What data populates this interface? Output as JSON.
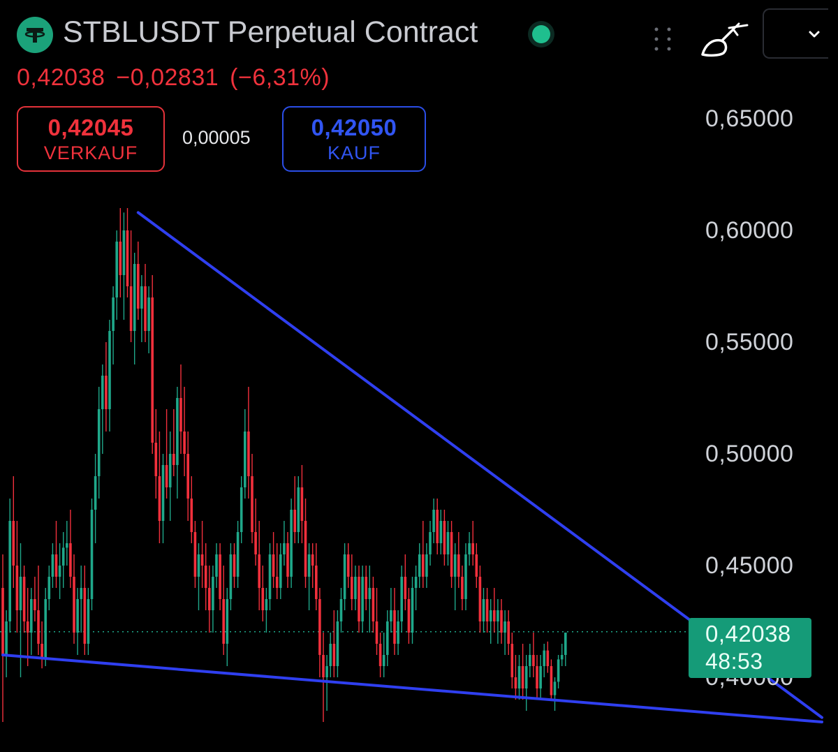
{
  "header": {
    "title": "STBLUSDT Perpetual Contract",
    "logo_icon": "tether-logo-icon",
    "status": "live",
    "icons": [
      "drag-handle-icon",
      "brush-icon",
      "chevron-down-icon"
    ]
  },
  "quote": {
    "last": "0,42038",
    "change": "−0,02831",
    "change_pct": "(−6,31%)"
  },
  "order": {
    "sell_price": "0,42045",
    "sell_label": "VERKAUF",
    "spread": "0,00005",
    "buy_price": "0,42050",
    "buy_label": "KAUF"
  },
  "current_tag": {
    "price": "0,42038",
    "countdown": "48:53"
  },
  "colors": {
    "up": "#1fa88a",
    "down": "#f2303c",
    "trendline": "#2f3ff0",
    "tag": "#159b78"
  },
  "chart_data": {
    "type": "candlestick",
    "yaxis": {
      "ticks": [
        0.65,
        0.6,
        0.55,
        0.5,
        0.45,
        0.4
      ],
      "tick_labels": [
        "0,65000",
        "0,60000",
        "0,55000",
        "0,50000",
        "0,45000",
        "0,40000"
      ],
      "range": [
        0.375,
        0.685
      ],
      "position": "right"
    },
    "current_price": 0.42038,
    "trendlines": [
      {
        "name": "resistance",
        "from": [
          38,
          0.608
        ],
        "to": [
          230,
          0.382
        ]
      },
      {
        "name": "support",
        "from": [
          0,
          0.41
        ],
        "to": [
          230,
          0.38
        ]
      }
    ],
    "candles_ohlc": [
      [
        0.44,
        0.455,
        0.38,
        0.41
      ],
      [
        0.41,
        0.43,
        0.4,
        0.425
      ],
      [
        0.425,
        0.48,
        0.42,
        0.47
      ],
      [
        0.47,
        0.49,
        0.44,
        0.45
      ],
      [
        0.45,
        0.47,
        0.42,
        0.43
      ],
      [
        0.43,
        0.46,
        0.4,
        0.445
      ],
      [
        0.445,
        0.45,
        0.42,
        0.425
      ],
      [
        0.425,
        0.44,
        0.405,
        0.42
      ],
      [
        0.42,
        0.44,
        0.41,
        0.435
      ],
      [
        0.435,
        0.445,
        0.425,
        0.43
      ],
      [
        0.43,
        0.45,
        0.41,
        0.415
      ],
      [
        0.415,
        0.425,
        0.404,
        0.408
      ],
      [
        0.408,
        0.44,
        0.405,
        0.435
      ],
      [
        0.435,
        0.45,
        0.43,
        0.445
      ],
      [
        0.445,
        0.46,
        0.44,
        0.455
      ],
      [
        0.455,
        0.47,
        0.44,
        0.445
      ],
      [
        0.445,
        0.46,
        0.435,
        0.45
      ],
      [
        0.45,
        0.465,
        0.44,
        0.458
      ],
      [
        0.458,
        0.47,
        0.45,
        0.46
      ],
      [
        0.46,
        0.475,
        0.44,
        0.445
      ],
      [
        0.445,
        0.455,
        0.415,
        0.42
      ],
      [
        0.42,
        0.44,
        0.41,
        0.435
      ],
      [
        0.435,
        0.45,
        0.42,
        0.44
      ],
      [
        0.44,
        0.45,
        0.41,
        0.415
      ],
      [
        0.415,
        0.44,
        0.41,
        0.435
      ],
      [
        0.435,
        0.48,
        0.43,
        0.475
      ],
      [
        0.475,
        0.5,
        0.46,
        0.49
      ],
      [
        0.49,
        0.53,
        0.48,
        0.52
      ],
      [
        0.52,
        0.54,
        0.5,
        0.535
      ],
      [
        0.535,
        0.55,
        0.51,
        0.52
      ],
      [
        0.52,
        0.56,
        0.51,
        0.555
      ],
      [
        0.555,
        0.575,
        0.54,
        0.57
      ],
      [
        0.57,
        0.6,
        0.56,
        0.595
      ],
      [
        0.595,
        0.61,
        0.57,
        0.58
      ],
      [
        0.58,
        0.608,
        0.56,
        0.6
      ],
      [
        0.6,
        0.61,
        0.57,
        0.575
      ],
      [
        0.575,
        0.6,
        0.55,
        0.555
      ],
      [
        0.555,
        0.59,
        0.54,
        0.585
      ],
      [
        0.585,
        0.595,
        0.56,
        0.565
      ],
      [
        0.565,
        0.58,
        0.55,
        0.575
      ],
      [
        0.575,
        0.585,
        0.55,
        0.555
      ],
      [
        0.555,
        0.575,
        0.545,
        0.57
      ],
      [
        0.57,
        0.58,
        0.5,
        0.505
      ],
      [
        0.505,
        0.52,
        0.48,
        0.49
      ],
      [
        0.49,
        0.51,
        0.46,
        0.47
      ],
      [
        0.47,
        0.5,
        0.46,
        0.495
      ],
      [
        0.495,
        0.52,
        0.48,
        0.485
      ],
      [
        0.485,
        0.51,
        0.47,
        0.5
      ],
      [
        0.5,
        0.52,
        0.49,
        0.495
      ],
      [
        0.495,
        0.53,
        0.48,
        0.525
      ],
      [
        0.525,
        0.54,
        0.5,
        0.51
      ],
      [
        0.51,
        0.53,
        0.49,
        0.5
      ],
      [
        0.5,
        0.51,
        0.47,
        0.48
      ],
      [
        0.48,
        0.49,
        0.46,
        0.465
      ],
      [
        0.465,
        0.47,
        0.44,
        0.445
      ],
      [
        0.445,
        0.46,
        0.43,
        0.455
      ],
      [
        0.455,
        0.47,
        0.44,
        0.45
      ],
      [
        0.45,
        0.46,
        0.43,
        0.44
      ],
      [
        0.44,
        0.45,
        0.42,
        0.43
      ],
      [
        0.43,
        0.45,
        0.42,
        0.445
      ],
      [
        0.445,
        0.46,
        0.44,
        0.455
      ],
      [
        0.455,
        0.46,
        0.43,
        0.435
      ],
      [
        0.435,
        0.45,
        0.41,
        0.415
      ],
      [
        0.415,
        0.44,
        0.405,
        0.435
      ],
      [
        0.435,
        0.46,
        0.43,
        0.455
      ],
      [
        0.455,
        0.46,
        0.44,
        0.445
      ],
      [
        0.445,
        0.47,
        0.44,
        0.465
      ],
      [
        0.465,
        0.49,
        0.46,
        0.485
      ],
      [
        0.485,
        0.52,
        0.48,
        0.51
      ],
      [
        0.51,
        0.53,
        0.48,
        0.49
      ],
      [
        0.49,
        0.5,
        0.46,
        0.465
      ],
      [
        0.465,
        0.48,
        0.45,
        0.455
      ],
      [
        0.455,
        0.47,
        0.43,
        0.44
      ],
      [
        0.44,
        0.45,
        0.425,
        0.43
      ],
      [
        0.43,
        0.44,
        0.42,
        0.435
      ],
      [
        0.435,
        0.46,
        0.43,
        0.455
      ],
      [
        0.455,
        0.465,
        0.44,
        0.445
      ],
      [
        0.445,
        0.46,
        0.435,
        0.44
      ],
      [
        0.44,
        0.46,
        0.435,
        0.455
      ],
      [
        0.455,
        0.47,
        0.45,
        0.46
      ],
      [
        0.46,
        0.465,
        0.44,
        0.445
      ],
      [
        0.445,
        0.48,
        0.44,
        0.475
      ],
      [
        0.475,
        0.49,
        0.46,
        0.465
      ],
      [
        0.465,
        0.49,
        0.46,
        0.485
      ],
      [
        0.485,
        0.495,
        0.46,
        0.47
      ],
      [
        0.47,
        0.48,
        0.44,
        0.445
      ],
      [
        0.445,
        0.46,
        0.43,
        0.455
      ],
      [
        0.455,
        0.46,
        0.44,
        0.45
      ],
      [
        0.45,
        0.46,
        0.43,
        0.435
      ],
      [
        0.435,
        0.44,
        0.4,
        0.41
      ],
      [
        0.41,
        0.42,
        0.38,
        0.4
      ],
      [
        0.4,
        0.41,
        0.385,
        0.405
      ],
      [
        0.405,
        0.42,
        0.4,
        0.415
      ],
      [
        0.415,
        0.43,
        0.4,
        0.405
      ],
      [
        0.405,
        0.43,
        0.4,
        0.425
      ],
      [
        0.425,
        0.44,
        0.42,
        0.435
      ],
      [
        0.435,
        0.46,
        0.43,
        0.455
      ],
      [
        0.455,
        0.46,
        0.44,
        0.445
      ],
      [
        0.445,
        0.455,
        0.43,
        0.435
      ],
      [
        0.435,
        0.45,
        0.43,
        0.445
      ],
      [
        0.445,
        0.45,
        0.42,
        0.425
      ],
      [
        0.425,
        0.45,
        0.42,
        0.445
      ],
      [
        0.445,
        0.45,
        0.43,
        0.435
      ],
      [
        0.435,
        0.45,
        0.42,
        0.44
      ],
      [
        0.44,
        0.445,
        0.42,
        0.425
      ],
      [
        0.425,
        0.44,
        0.41,
        0.415
      ],
      [
        0.415,
        0.42,
        0.4,
        0.405
      ],
      [
        0.405,
        0.42,
        0.4,
        0.41
      ],
      [
        0.41,
        0.43,
        0.405,
        0.425
      ],
      [
        0.425,
        0.44,
        0.42,
        0.43
      ],
      [
        0.43,
        0.44,
        0.41,
        0.415
      ],
      [
        0.415,
        0.43,
        0.41,
        0.425
      ],
      [
        0.425,
        0.45,
        0.42,
        0.445
      ],
      [
        0.445,
        0.455,
        0.43,
        0.435
      ],
      [
        0.435,
        0.44,
        0.415,
        0.42
      ],
      [
        0.42,
        0.445,
        0.415,
        0.44
      ],
      [
        0.44,
        0.45,
        0.43,
        0.445
      ],
      [
        0.445,
        0.46,
        0.44,
        0.455
      ],
      [
        0.455,
        0.47,
        0.44,
        0.445
      ],
      [
        0.445,
        0.46,
        0.44,
        0.455
      ],
      [
        0.455,
        0.47,
        0.45,
        0.465
      ],
      [
        0.465,
        0.48,
        0.46,
        0.475
      ],
      [
        0.475,
        0.48,
        0.455,
        0.46
      ],
      [
        0.46,
        0.475,
        0.455,
        0.47
      ],
      [
        0.47,
        0.475,
        0.45,
        0.455
      ],
      [
        0.455,
        0.47,
        0.45,
        0.465
      ],
      [
        0.465,
        0.47,
        0.44,
        0.445
      ],
      [
        0.445,
        0.46,
        0.43,
        0.455
      ],
      [
        0.455,
        0.465,
        0.44,
        0.445
      ],
      [
        0.445,
        0.45,
        0.43,
        0.435
      ],
      [
        0.435,
        0.46,
        0.43,
        0.455
      ],
      [
        0.455,
        0.465,
        0.45,
        0.46
      ],
      [
        0.46,
        0.47,
        0.45,
        0.455
      ],
      [
        0.455,
        0.46,
        0.44,
        0.445
      ],
      [
        0.445,
        0.45,
        0.42,
        0.425
      ],
      [
        0.425,
        0.44,
        0.42,
        0.435
      ],
      [
        0.435,
        0.44,
        0.42,
        0.425
      ],
      [
        0.425,
        0.435,
        0.415,
        0.43
      ],
      [
        0.43,
        0.44,
        0.42,
        0.425
      ],
      [
        0.425,
        0.435,
        0.415,
        0.43
      ],
      [
        0.43,
        0.435,
        0.415,
        0.42
      ],
      [
        0.42,
        0.43,
        0.41,
        0.425
      ],
      [
        0.425,
        0.43,
        0.41,
        0.415
      ],
      [
        0.415,
        0.42,
        0.395,
        0.4
      ],
      [
        0.4,
        0.41,
        0.39,
        0.395
      ],
      [
        0.395,
        0.41,
        0.39,
        0.405
      ],
      [
        0.405,
        0.415,
        0.39,
        0.395
      ],
      [
        0.395,
        0.41,
        0.385,
        0.405
      ],
      [
        0.405,
        0.415,
        0.4,
        0.41
      ],
      [
        0.41,
        0.42,
        0.4,
        0.405
      ],
      [
        0.405,
        0.41,
        0.39,
        0.395
      ],
      [
        0.395,
        0.41,
        0.39,
        0.405
      ],
      [
        0.405,
        0.415,
        0.4,
        0.412
      ],
      [
        0.412,
        0.416,
        0.402,
        0.405
      ],
      [
        0.405,
        0.408,
        0.39,
        0.392
      ],
      [
        0.392,
        0.4,
        0.385,
        0.398
      ],
      [
        0.398,
        0.41,
        0.395,
        0.408
      ],
      [
        0.408,
        0.415,
        0.405,
        0.41
      ],
      [
        0.41,
        0.42,
        0.405,
        0.42
      ]
    ]
  }
}
